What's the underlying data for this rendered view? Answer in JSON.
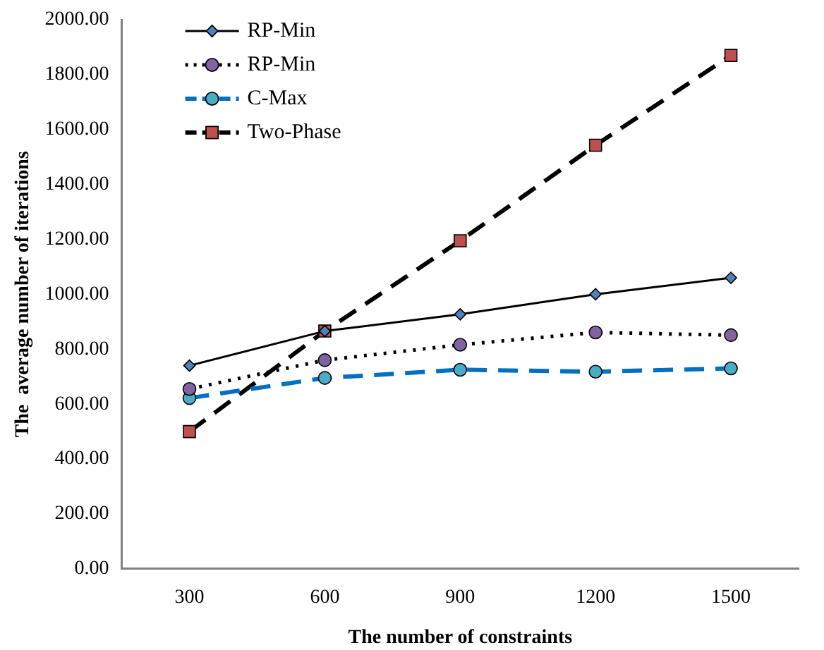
{
  "chart_data": {
    "type": "line",
    "xlabel": "The number of constraints",
    "ylabel": "The  average number of iterations",
    "categories": [
      "300",
      "600",
      "900",
      "1200",
      "1500"
    ],
    "series": [
      {
        "name": "RP-Min",
        "color": "#000000",
        "colors": [
          "#4f81bd",
          "#4f81bd",
          "#4f81bd",
          "#4f81bd",
          "#4f81bd"
        ],
        "marker": "diamond",
        "line_style": "solid",
        "values": [
          740,
          866,
          927,
          1000,
          1060
        ]
      },
      {
        "name": "RP-Min",
        "color": "#000000",
        "colors": [
          "#8064a2",
          "#8064a2",
          "#8064a2",
          "#8064a2",
          "#8064a2"
        ],
        "marker": "circle",
        "line_style": "dotted",
        "values": [
          655,
          760,
          816,
          861,
          851
        ]
      },
      {
        "name": "C-Max",
        "color": "#0070c0",
        "colors": [
          "#4bacc6",
          "#4bacc6",
          "#4bacc6",
          "#4bacc6",
          "#4bacc6"
        ],
        "marker": "circle",
        "line_style": "dashed",
        "values": [
          622,
          695,
          725,
          718,
          730
        ]
      },
      {
        "name": "Two-Phase",
        "color": "#000000",
        "colors": [
          "#c0504d",
          "#c0504d",
          "#c0504d",
          "#c0504d",
          "#c0504d"
        ],
        "marker": "square",
        "line_style": "dashed",
        "values": [
          500,
          866,
          1195,
          1543,
          1870
        ]
      }
    ],
    "ylim": [
      0,
      2000
    ],
    "yticks": [
      {
        "value": 0,
        "label": "0.00"
      },
      {
        "value": 200,
        "label": "200.00"
      },
      {
        "value": 400,
        "label": "400.00"
      },
      {
        "value": 600,
        "label": "600.00"
      },
      {
        "value": 800,
        "label": "800.00"
      },
      {
        "value": 1000,
        "label": "1000.00"
      },
      {
        "value": 1200,
        "label": "1200.00"
      },
      {
        "value": 1400,
        "label": "1400.00"
      },
      {
        "value": 1600,
        "label": "1600.00"
      },
      {
        "value": 1800,
        "label": "1800.00"
      },
      {
        "value": 2000,
        "label": "2000.00"
      }
    ],
    "grid": false,
    "legend": "top left"
  }
}
